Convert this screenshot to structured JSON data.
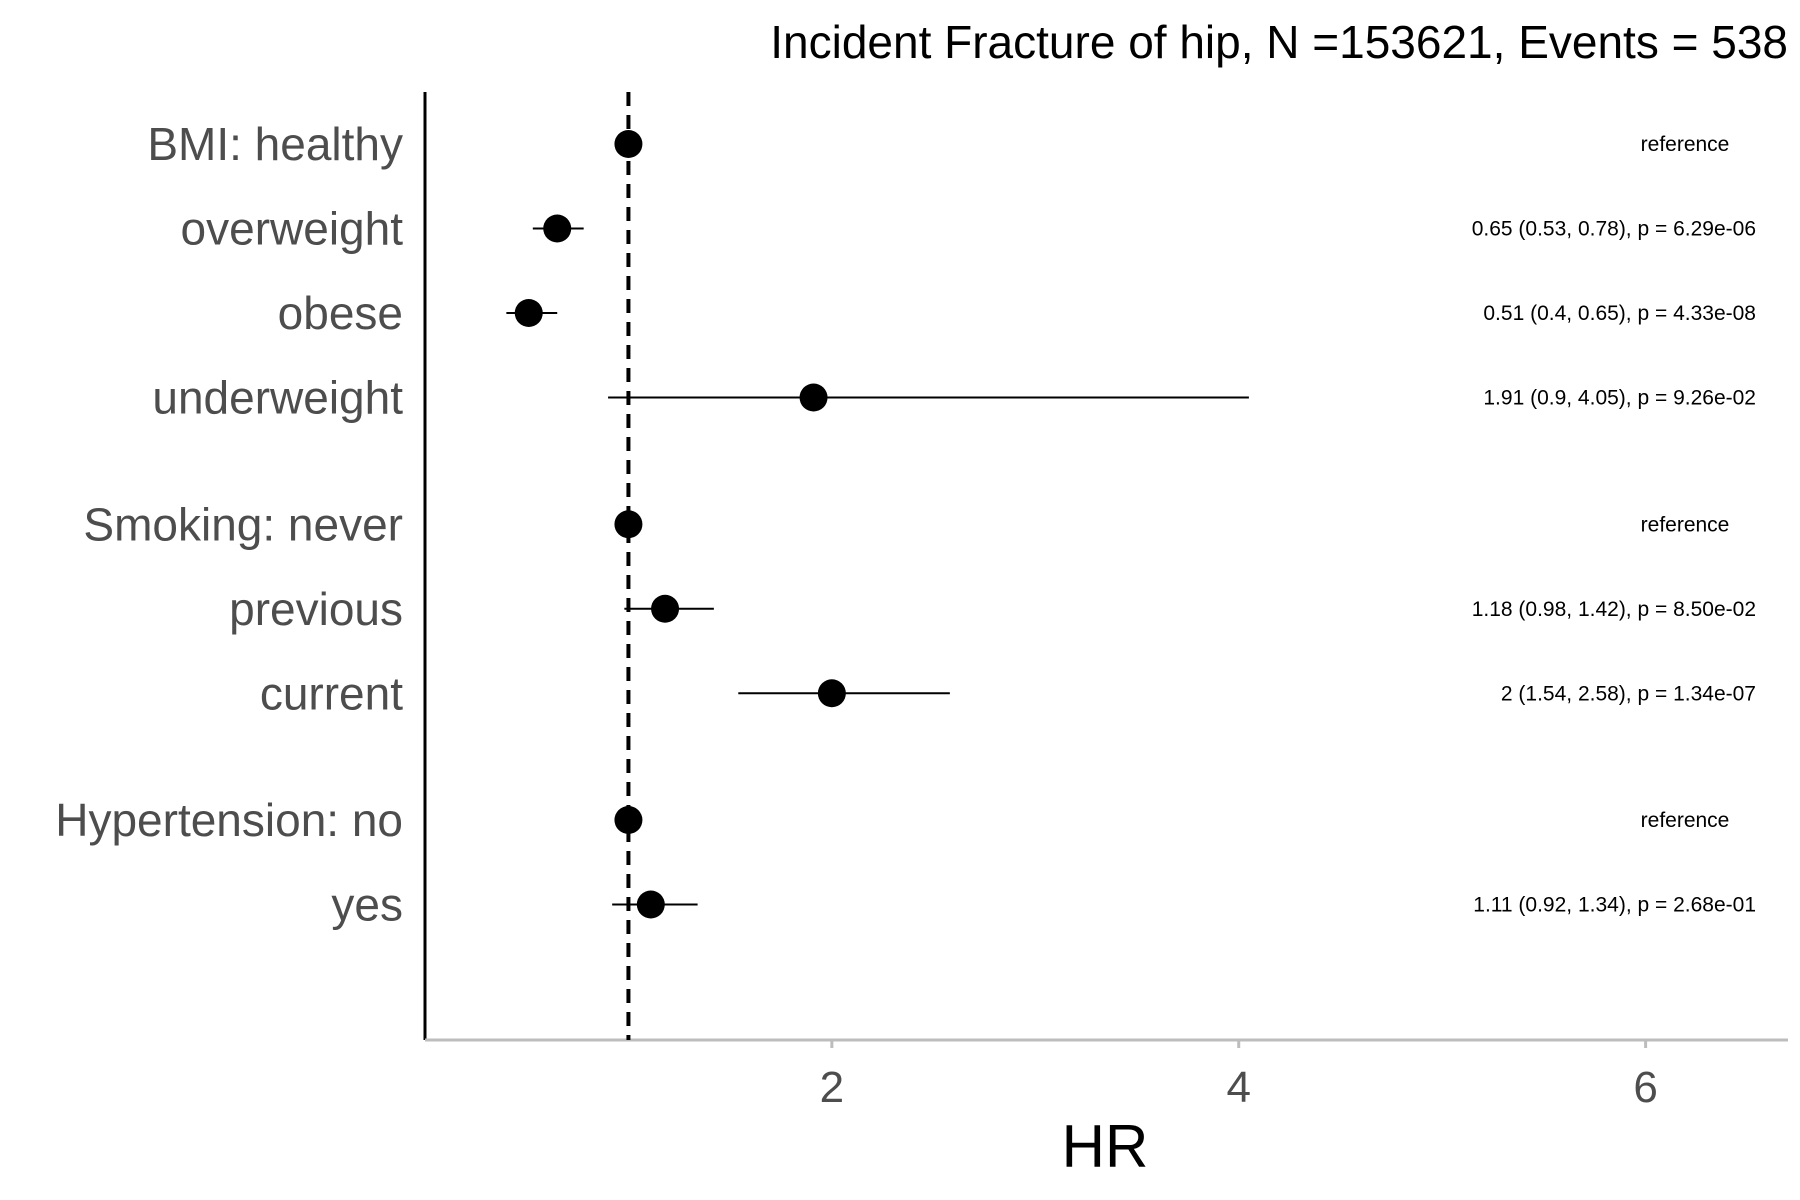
{
  "chart_data": {
    "type": "forest",
    "title": "Incident Fracture of hip, N =153621, Events = 538",
    "xlabel": "HR",
    "xlim": [
      0.0,
      6.7
    ],
    "reference_line": 1,
    "x_ticks": [
      2,
      4,
      6
    ],
    "grid": false,
    "rows": [
      {
        "label": "BMI: healthy",
        "hr": 1,
        "ci": null,
        "annotation": "reference"
      },
      {
        "label": "overweight",
        "hr": 0.65,
        "ci": [
          0.53,
          0.78
        ],
        "annotation": "0.65 (0.53, 0.78), p = 6.29e-06"
      },
      {
        "label": "obese",
        "hr": 0.51,
        "ci": [
          0.4,
          0.65
        ],
        "annotation": "0.51 (0.4, 0.65), p = 4.33e-08"
      },
      {
        "label": "underweight",
        "hr": 1.91,
        "ci": [
          0.9,
          4.05
        ],
        "annotation": "1.91 (0.9, 4.05), p = 9.26e-02"
      },
      {
        "label": "Smoking: never",
        "hr": 1,
        "ci": null,
        "annotation": "reference"
      },
      {
        "label": "previous",
        "hr": 1.18,
        "ci": [
          0.98,
          1.42
        ],
        "annotation": "1.18 (0.98, 1.42), p = 8.50e-02"
      },
      {
        "label": "current",
        "hr": 2,
        "ci": [
          1.54,
          2.58
        ],
        "annotation": "2 (1.54, 2.58), p = 1.34e-07"
      },
      {
        "label": "Hypertension: no",
        "hr": 1,
        "ci": null,
        "annotation": "reference"
      },
      {
        "label": "yes",
        "hr": 1.11,
        "ci": [
          0.92,
          1.34
        ],
        "annotation": "1.11 (0.92, 1.34), p = 2.68e-01"
      }
    ],
    "group_gap_after": [
      3,
      6
    ],
    "colors": {
      "point": "#000000",
      "axis": "#000000",
      "x_axis": "#bdbdbd",
      "label": "#4d4d4d"
    }
  }
}
